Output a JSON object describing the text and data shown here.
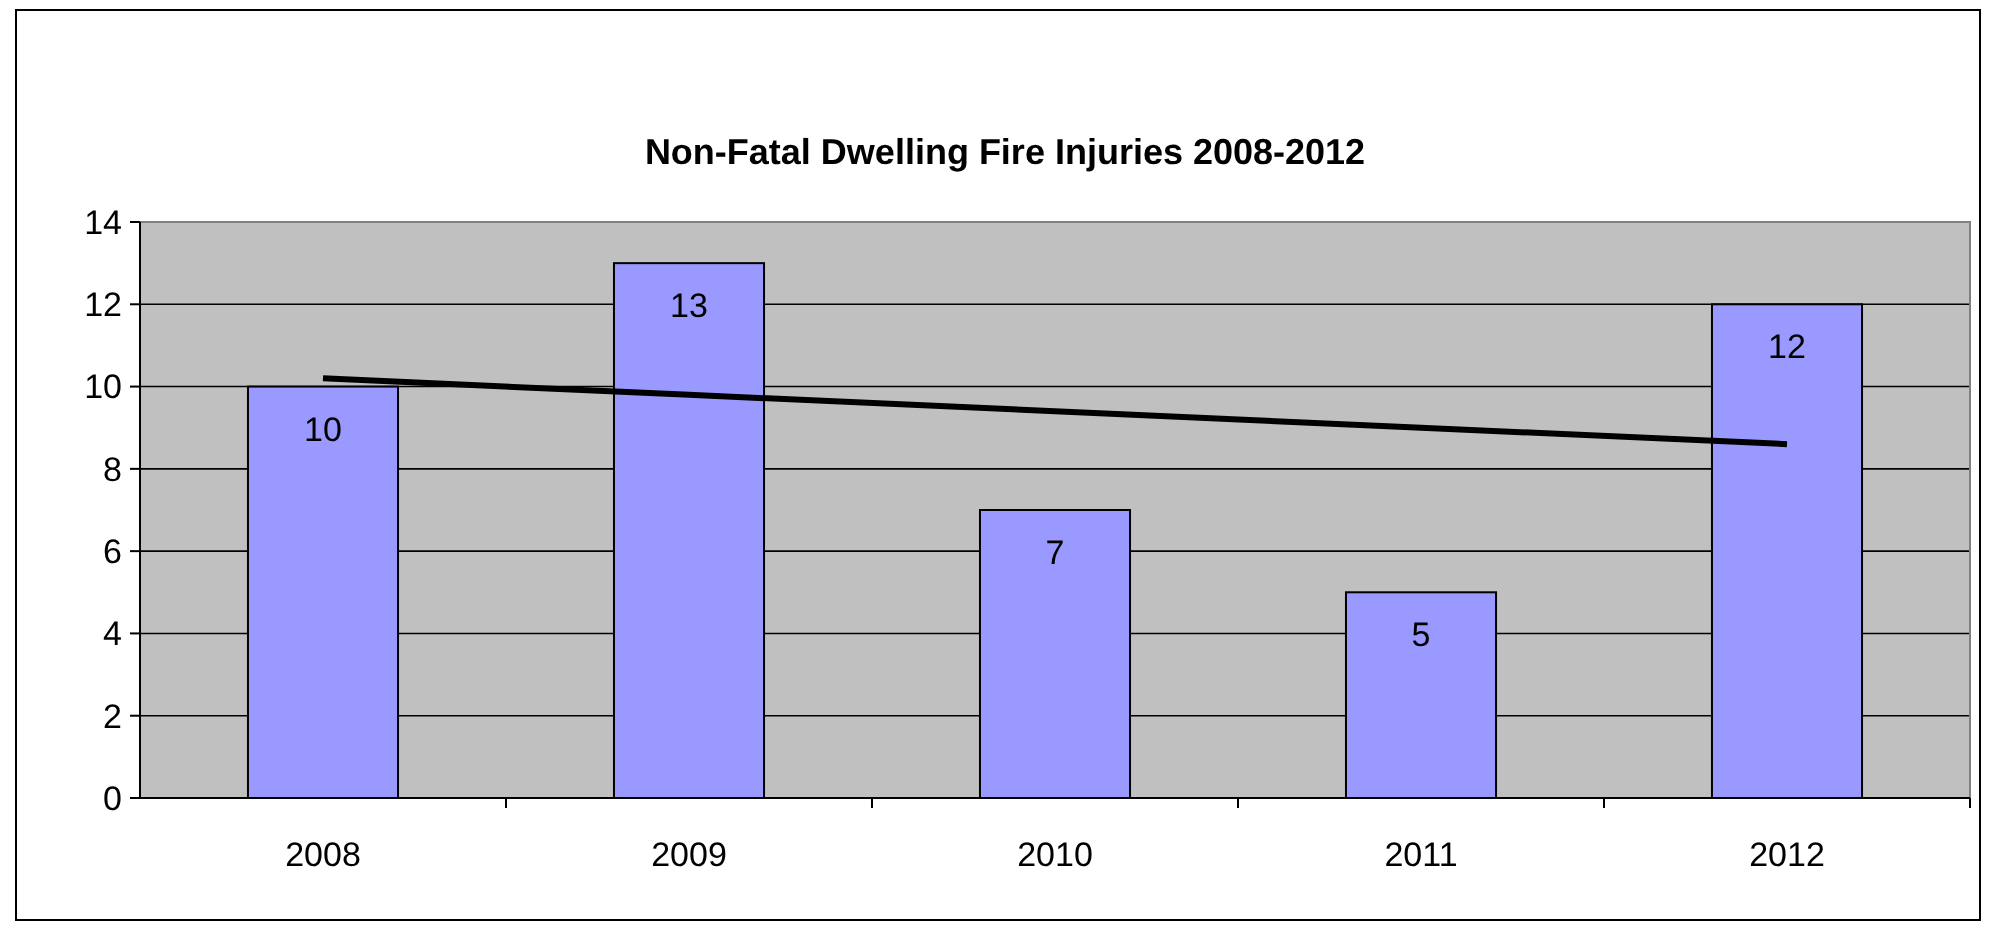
{
  "chart_data": {
    "type": "bar",
    "title": "Non-Fatal Dwelling Fire Injuries 2008-2012",
    "categories": [
      "2008",
      "2009",
      "2010",
      "2011",
      "2012"
    ],
    "series": [
      {
        "color": "#9999ff",
        "values": [
          10,
          13,
          7,
          5,
          12
        ],
        "value_labels": [
          "10",
          "13",
          "7",
          "5",
          "12"
        ]
      },
      {
        "type": "line",
        "color": "#000000",
        "values": [
          10.2,
          9.8,
          9.4,
          9.0,
          8.6
        ]
      }
    ],
    "ylim": [
      0,
      14
    ],
    "yticks": [
      0,
      2,
      4,
      6,
      8,
      10,
      12,
      14
    ],
    "grid": "y",
    "marker": "none"
  }
}
